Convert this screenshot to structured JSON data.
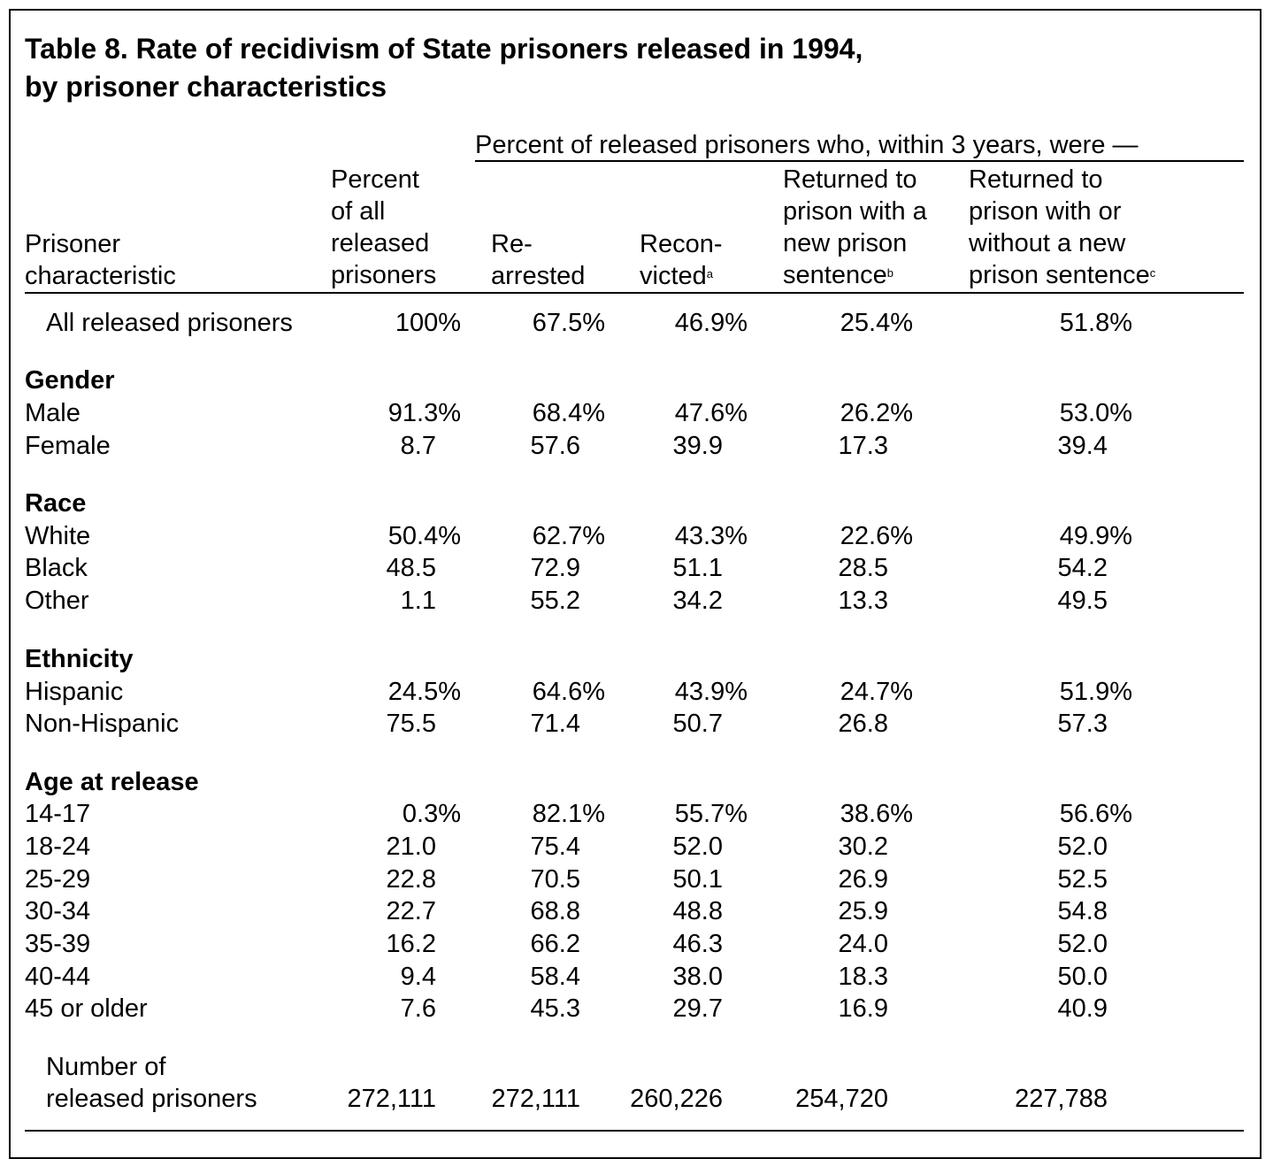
{
  "title_line1": "Table  8.  Rate of recidivism of State prisoners released in 1994,",
  "title_line2": "by prisoner characteristics",
  "spanner": "Percent of released prisoners who, within 3 years, were —",
  "columns": [
    {
      "lines": [
        "Prisoner",
        "characteristic"
      ]
    },
    {
      "lines": [
        "Percent",
        "of all",
        "released",
        "prisoners"
      ]
    },
    {
      "lines": [
        "Re-",
        "arrested"
      ]
    },
    {
      "lines": [
        "Recon-",
        "victed"
      ],
      "note": "a"
    },
    {
      "lines": [
        "Returned to",
        "prison with a",
        "new prison",
        "sentence"
      ],
      "note": "b"
    },
    {
      "lines": [
        "Returned to",
        "prison with or",
        "without a new",
        "prison sentence"
      ],
      "note": "c"
    }
  ],
  "all_row": {
    "label": "All released prisoners",
    "values": [
      "100%",
      "67.5%",
      "46.9%",
      "25.4%",
      "51.8%"
    ]
  },
  "groups": [
    {
      "heading": "Gender",
      "rows": [
        {
          "label": "Male",
          "values": [
            "91.3%",
            "68.4%",
            "47.6%",
            "26.2%",
            "53.0%"
          ]
        },
        {
          "label": "Female",
          "values": [
            "8.7",
            "57.6",
            "39.9",
            "17.3",
            "39.4"
          ]
        }
      ]
    },
    {
      "heading": "Race",
      "rows": [
        {
          "label": "White",
          "values": [
            "50.4%",
            "62.7%",
            "43.3%",
            "22.6%",
            "49.9%"
          ]
        },
        {
          "label": "Black",
          "values": [
            "48.5",
            "72.9",
            "51.1",
            "28.5",
            "54.2"
          ]
        },
        {
          "label": "Other",
          "values": [
            "1.1",
            "55.2",
            "34.2",
            "13.3",
            "49.5"
          ]
        }
      ]
    },
    {
      "heading": "Ethnicity",
      "rows": [
        {
          "label": "Hispanic",
          "values": [
            "24.5%",
            "64.6%",
            "43.9%",
            "24.7%",
            "51.9%"
          ]
        },
        {
          "label": "Non-Hispanic",
          "values": [
            "75.5",
            "71.4",
            "50.7",
            "26.8",
            "57.3"
          ]
        }
      ]
    },
    {
      "heading": "Age at release",
      "rows": [
        {
          "label": "14-17",
          "values": [
            "0.3%",
            "82.1%",
            "55.7%",
            "38.6%",
            "56.6%"
          ]
        },
        {
          "label": "18-24",
          "values": [
            "21.0",
            "75.4",
            "52.0",
            "30.2",
            "52.0"
          ]
        },
        {
          "label": "25-29",
          "values": [
            "22.8",
            "70.5",
            "50.1",
            "26.9",
            "52.5"
          ]
        },
        {
          "label": "30-34",
          "values": [
            "22.7",
            "68.8",
            "48.8",
            "25.9",
            "54.8"
          ]
        },
        {
          "label": "35-39",
          "values": [
            "16.2",
            "66.2",
            "46.3",
            "24.0",
            "52.0"
          ]
        },
        {
          "label": "40-44",
          "values": [
            "9.4",
            "58.4",
            "38.0",
            "18.3",
            "50.0"
          ]
        },
        {
          "label": "45 or older",
          "values": [
            "7.6",
            "45.3",
            "29.7",
            "16.9",
            "40.9"
          ]
        }
      ]
    }
  ],
  "count_row": {
    "label_lines": [
      "Number of",
      "released prisoners"
    ],
    "values": [
      "272,111",
      "272,111",
      "260,226",
      "254,720",
      "227,788"
    ]
  }
}
